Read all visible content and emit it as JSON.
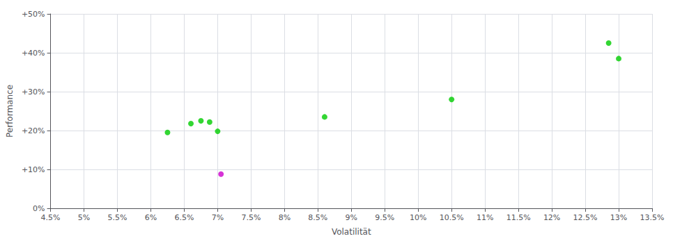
{
  "chart_data": {
    "type": "scatter",
    "xlabel": "Volatilität",
    "ylabel": "Performance",
    "series": [
      {
        "color": "#00cc00",
        "x": [
          6.25,
          6.6,
          6.75,
          6.88,
          7.0,
          8.6,
          10.5,
          12.85,
          13.0
        ],
        "values": [
          19.5,
          21.8,
          22.5,
          22.2,
          19.8,
          23.5,
          28.0,
          42.5,
          38.5
        ]
      },
      {
        "color": "#cc00cc",
        "x": [
          7.05
        ],
        "values": [
          8.8
        ]
      }
    ],
    "xlim": [
      4.5,
      13.5
    ],
    "xticks": [
      {
        "value": 4.5,
        "label": "4.5%"
      },
      {
        "value": 5.0,
        "label": "5%"
      },
      {
        "value": 5.5,
        "label": "5.5%"
      },
      {
        "value": 6.0,
        "label": "6%"
      },
      {
        "value": 6.5,
        "label": "6.5%"
      },
      {
        "value": 7.0,
        "label": "7%"
      },
      {
        "value": 7.5,
        "label": "7.5%"
      },
      {
        "value": 8.0,
        "label": "8%"
      },
      {
        "value": 8.5,
        "label": "8.5%"
      },
      {
        "value": 9.0,
        "label": "9%"
      },
      {
        "value": 9.5,
        "label": "9.5%"
      },
      {
        "value": 10.0,
        "label": "10%"
      },
      {
        "value": 10.5,
        "label": "10.5%"
      },
      {
        "value": 11.0,
        "label": "11%"
      },
      {
        "value": 11.5,
        "label": "11.5%"
      },
      {
        "value": 12.0,
        "label": "12%"
      },
      {
        "value": 12.5,
        "label": "12.5%"
      },
      {
        "value": 13.0,
        "label": "13%"
      },
      {
        "value": 13.5,
        "label": "13.5%"
      }
    ],
    "ylim": [
      0,
      50
    ],
    "yticks": [
      {
        "value": 0,
        "label": "0%"
      },
      {
        "value": 10,
        "label": "+10%"
      },
      {
        "value": 20,
        "label": "+20%"
      },
      {
        "value": 30,
        "label": "+30%"
      },
      {
        "value": 40,
        "label": "+40%"
      },
      {
        "value": 50,
        "label": "+50%"
      }
    ],
    "grid": true
  }
}
